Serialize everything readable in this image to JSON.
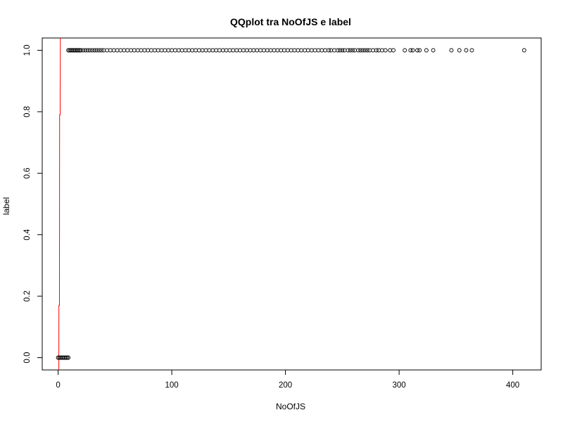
{
  "chart_data": {
    "type": "scatter",
    "title": "QQplot tra NoOfJS e label",
    "xlabel": "NoOfJS",
    "ylabel": "label",
    "xlim": [
      -14,
      425
    ],
    "ylim": [
      -0.04,
      1.04
    ],
    "x_ticks": [
      0,
      100,
      200,
      300,
      400
    ],
    "x_tick_labels": [
      "0",
      "100",
      "200",
      "300",
      "400"
    ],
    "y_ticks": [
      0,
      0.2,
      0.4,
      0.6,
      0.8,
      1.0
    ],
    "y_tick_labels": [
      "0.0",
      "0.2",
      "0.4",
      "0.6",
      "0.8",
      "1.0"
    ],
    "grid": false,
    "series": [
      {
        "marker": "open-circle",
        "color": "#000000",
        "points": [
          [
            0,
            0
          ],
          [
            1,
            0
          ],
          [
            2,
            0
          ],
          [
            3,
            0
          ],
          [
            4,
            0
          ],
          [
            5,
            0
          ],
          [
            6,
            0
          ],
          [
            7,
            0
          ],
          [
            8,
            0
          ],
          [
            9,
            0
          ],
          [
            9,
            1
          ],
          [
            10,
            1
          ],
          [
            11,
            1
          ],
          [
            12,
            1
          ],
          [
            13,
            1
          ],
          [
            14,
            1
          ],
          [
            15,
            1
          ],
          [
            16,
            1
          ],
          [
            17,
            1
          ],
          [
            18,
            1
          ],
          [
            19,
            1
          ],
          [
            20,
            1
          ],
          [
            22,
            1
          ],
          [
            24,
            1
          ],
          [
            26,
            1
          ],
          [
            28,
            1
          ],
          [
            30,
            1
          ],
          [
            32,
            1
          ],
          [
            34,
            1
          ],
          [
            36,
            1
          ],
          [
            38,
            1
          ],
          [
            40,
            1
          ],
          [
            43,
            1
          ],
          [
            46,
            1
          ],
          [
            49,
            1
          ],
          [
            52,
            1
          ],
          [
            55,
            1
          ],
          [
            58,
            1
          ],
          [
            61,
            1
          ],
          [
            64,
            1
          ],
          [
            67,
            1
          ],
          [
            70,
            1
          ],
          [
            73,
            1
          ],
          [
            76,
            1
          ],
          [
            79,
            1
          ],
          [
            82,
            1
          ],
          [
            85,
            1
          ],
          [
            88,
            1
          ],
          [
            91,
            1
          ],
          [
            94,
            1
          ],
          [
            97,
            1
          ],
          [
            100,
            1
          ],
          [
            103,
            1
          ],
          [
            106,
            1
          ],
          [
            109,
            1
          ],
          [
            112,
            1
          ],
          [
            115,
            1
          ],
          [
            118,
            1
          ],
          [
            121,
            1
          ],
          [
            124,
            1
          ],
          [
            127,
            1
          ],
          [
            130,
            1
          ],
          [
            133,
            1
          ],
          [
            136,
            1
          ],
          [
            139,
            1
          ],
          [
            142,
            1
          ],
          [
            145,
            1
          ],
          [
            148,
            1
          ],
          [
            151,
            1
          ],
          [
            154,
            1
          ],
          [
            157,
            1
          ],
          [
            160,
            1
          ],
          [
            163,
            1
          ],
          [
            166,
            1
          ],
          [
            169,
            1
          ],
          [
            172,
            1
          ],
          [
            175,
            1
          ],
          [
            178,
            1
          ],
          [
            181,
            1
          ],
          [
            184,
            1
          ],
          [
            187,
            1
          ],
          [
            190,
            1
          ],
          [
            193,
            1
          ],
          [
            196,
            1
          ],
          [
            199,
            1
          ],
          [
            202,
            1
          ],
          [
            205,
            1
          ],
          [
            208,
            1
          ],
          [
            211,
            1
          ],
          [
            214,
            1
          ],
          [
            217,
            1
          ],
          [
            220,
            1
          ],
          [
            223,
            1
          ],
          [
            226,
            1
          ],
          [
            229,
            1
          ],
          [
            232,
            1
          ],
          [
            235,
            1
          ],
          [
            238,
            1
          ],
          [
            240,
            1
          ],
          [
            243,
            1
          ],
          [
            246,
            1
          ],
          [
            248,
            1
          ],
          [
            250,
            1
          ],
          [
            252,
            1
          ],
          [
            255,
            1
          ],
          [
            257,
            1
          ],
          [
            259,
            1
          ],
          [
            261,
            1
          ],
          [
            264,
            1
          ],
          [
            266,
            1
          ],
          [
            268,
            1
          ],
          [
            270,
            1
          ],
          [
            272,
            1
          ],
          [
            274,
            1
          ],
          [
            277,
            1
          ],
          [
            280,
            1
          ],
          [
            282,
            1
          ],
          [
            285,
            1
          ],
          [
            288,
            1
          ],
          [
            292,
            1
          ],
          [
            295,
            1
          ],
          [
            305,
            1
          ],
          [
            310,
            1
          ],
          [
            312,
            1
          ],
          [
            316,
            1
          ],
          [
            318,
            1
          ],
          [
            324,
            1
          ],
          [
            330,
            1
          ],
          [
            346,
            1
          ],
          [
            353,
            1
          ],
          [
            359,
            1
          ],
          [
            364,
            1
          ],
          [
            410,
            1
          ]
        ]
      },
      {
        "name": "",
        "type": "line",
        "color": "#ff0000",
        "points": [
          [
            0.6,
            -0.04
          ],
          [
            0.7,
            0.17
          ],
          [
            1.2,
            0.17
          ],
          [
            1.3,
            0.79
          ],
          [
            1.8,
            0.79
          ],
          [
            1.9,
            1.04
          ]
        ]
      }
    ]
  }
}
